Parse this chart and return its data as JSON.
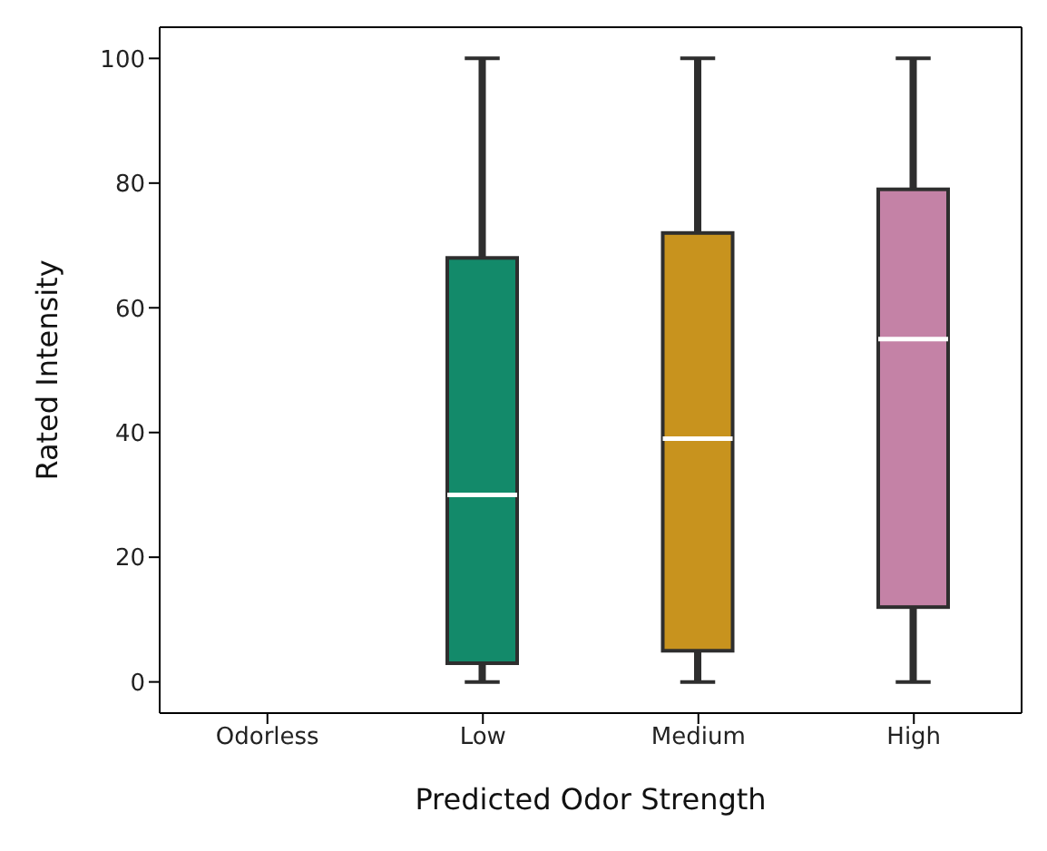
{
  "chart_data": {
    "type": "box",
    "xlabel": "Predicted Odor Strength",
    "ylabel": "Rated Intensity",
    "categories": [
      "Odorless",
      "Low",
      "Medium",
      "High"
    ],
    "colors": [
      "#888888",
      "#138a6a",
      "#c8931e",
      "#c482a6"
    ],
    "boxes": [
      null,
      {
        "low": 0,
        "q1": 3,
        "median": 30,
        "q3": 68,
        "high": 100
      },
      {
        "low": 0,
        "q1": 5,
        "median": 39,
        "q3": 72,
        "high": 100
      },
      {
        "low": 0,
        "q1": 12,
        "median": 55,
        "q3": 79,
        "high": 100
      }
    ],
    "ylim": [
      -5,
      105
    ],
    "yticks": [
      0,
      20,
      40,
      60,
      80,
      100
    ],
    "grid": false,
    "legend": false
  }
}
